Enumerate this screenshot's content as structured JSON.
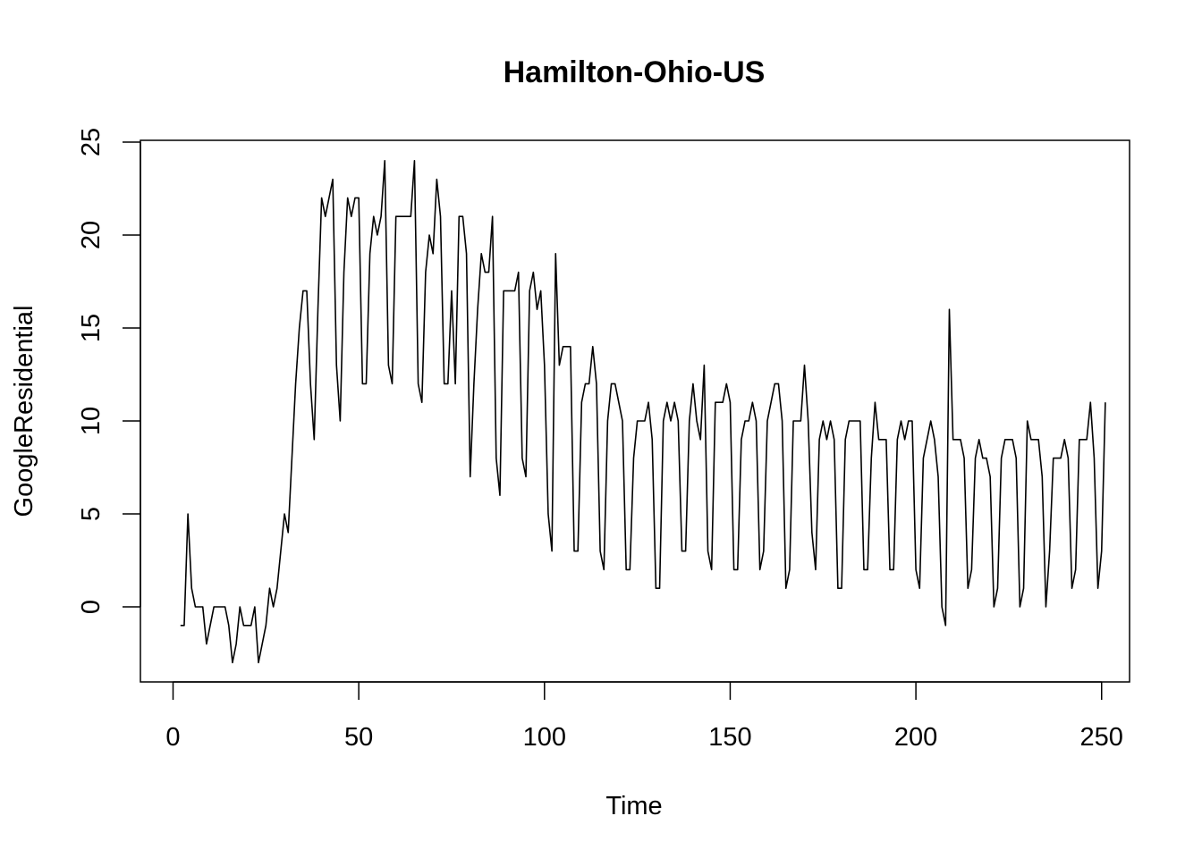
{
  "chart_data": {
    "type": "line",
    "title": "Hamilton-Ohio-US",
    "xlabel": "Time",
    "ylabel": "GoogleResidential",
    "xlim": [
      0,
      250
    ],
    "ylim": [
      -3,
      25
    ],
    "xticks": [
      0,
      50,
      100,
      150,
      200,
      250
    ],
    "yticks": [
      0,
      5,
      10,
      15,
      20,
      25
    ],
    "grid": false,
    "line_color": "#000000",
    "start_x": 2,
    "values": [
      -1,
      -1,
      5,
      1,
      0,
      0,
      0,
      -2,
      -1,
      0,
      0,
      0,
      0,
      -1,
      -3,
      -2,
      0,
      -1,
      -1,
      -1,
      0,
      -3,
      -2,
      -1,
      1,
      0,
      1,
      3,
      5,
      4,
      8,
      12,
      15,
      17,
      17,
      12,
      9,
      16,
      22,
      21,
      22,
      23,
      13,
      10,
      18,
      22,
      21,
      22,
      22,
      12,
      12,
      19,
      21,
      20,
      21,
      24,
      13,
      12,
      21,
      21,
      21,
      21,
      21,
      24,
      12,
      11,
      18,
      20,
      19,
      23,
      21,
      12,
      12,
      17,
      12,
      21,
      21,
      19,
      7,
      12,
      16,
      19,
      18,
      18,
      21,
      8,
      6,
      17,
      17,
      17,
      17,
      18,
      8,
      7,
      17,
      18,
      16,
      17,
      13,
      5,
      3,
      19,
      13,
      14,
      14,
      14,
      3,
      3,
      11,
      12,
      12,
      14,
      12,
      3,
      2,
      10,
      12,
      12,
      11,
      10,
      2,
      2,
      8,
      10,
      10,
      10,
      11,
      9,
      1,
      1,
      10,
      11,
      10,
      11,
      10,
      3,
      3,
      10,
      12,
      10,
      9,
      13,
      3,
      2,
      11,
      11,
      11,
      12,
      11,
      2,
      2,
      9,
      10,
      10,
      11,
      10,
      2,
      3,
      10,
      11,
      12,
      12,
      10,
      1,
      2,
      10,
      10,
      10,
      13,
      10,
      4,
      2,
      9,
      10,
      9,
      10,
      9,
      1,
      1,
      9,
      10,
      10,
      10,
      10,
      2,
      2,
      8,
      11,
      9,
      9,
      9,
      2,
      2,
      9,
      10,
      9,
      10,
      10,
      2,
      1,
      8,
      9,
      10,
      9,
      7,
      0,
      -1,
      16,
      9,
      9,
      9,
      8,
      1,
      2,
      8,
      9,
      8,
      8,
      7,
      0,
      1,
      8,
      9,
      9,
      9,
      8,
      0,
      1,
      10,
      9,
      9,
      9,
      7,
      0,
      3,
      8,
      8,
      8,
      9,
      8,
      1,
      2,
      9,
      9,
      9,
      11,
      8,
      1,
      3,
      11
    ]
  }
}
